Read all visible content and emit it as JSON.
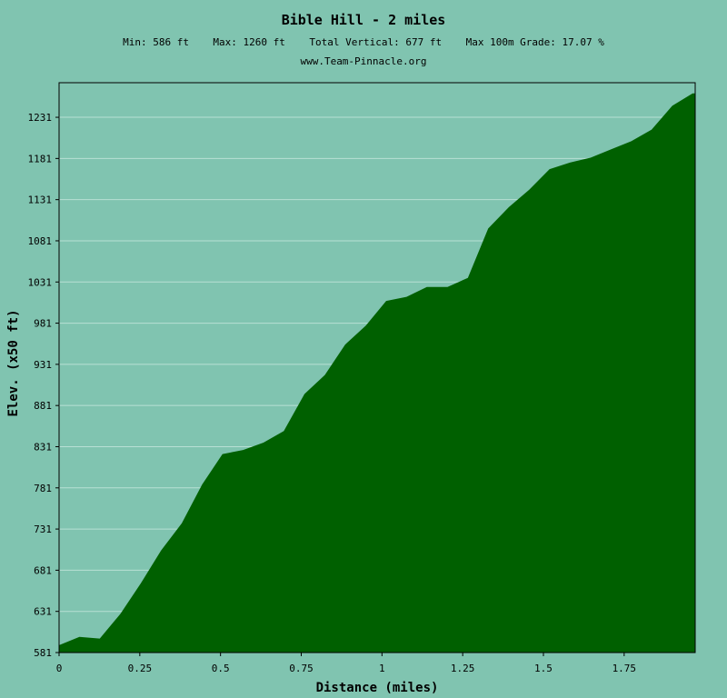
{
  "header": {
    "title": "Bible Hill - 2 miles",
    "stats": "Min: 586 ft    Max: 1260 ft    Total Vertical: 677 ft    Max 100m Grade: 17.07 %",
    "site": "www.Team-Pinnacle.org"
  },
  "colors": {
    "background": "#80c4b0",
    "fill": "#006000",
    "grid": "#b8e0d4"
  },
  "chart_data": {
    "type": "area",
    "title": "Bible Hill - 2 miles",
    "xlabel": "Distance (miles)",
    "ylabel": "Elev. (x50 ft)",
    "xlim": [
      0,
      1.97
    ],
    "ylim": [
      581,
      1273
    ],
    "xticks": [
      "0",
      "0.25",
      "0.5",
      "0.75",
      "1",
      "1.25",
      "1.5",
      "1.75"
    ],
    "xtick_values": [
      0,
      0.25,
      0.5,
      0.75,
      1,
      1.25,
      1.5,
      1.75
    ],
    "yticks": [
      "581",
      "631",
      "681",
      "731",
      "781",
      "831",
      "881",
      "931",
      "981",
      "1031",
      "1081",
      "1131",
      "1181",
      "1231"
    ],
    "ytick_values": [
      581,
      631,
      681,
      731,
      781,
      831,
      881,
      931,
      981,
      1031,
      1081,
      1131,
      1181,
      1231
    ],
    "grid": "horizontal",
    "series": [
      {
        "x": [
          0,
          0.063,
          0.126,
          0.19,
          0.253,
          0.316,
          0.38,
          0.443,
          0.506,
          0.57,
          0.633,
          0.696,
          0.76,
          0.823,
          0.886,
          0.95,
          1.013,
          1.076,
          1.139,
          1.203,
          1.266,
          1.329,
          1.393,
          1.456,
          1.519,
          1.582,
          1.646,
          1.709,
          1.772,
          1.835,
          1.899,
          1.962,
          1.97
        ],
        "y": [
          590,
          600,
          598,
          628,
          665,
          705,
          738,
          785,
          822,
          827,
          836,
          850,
          895,
          918,
          955,
          978,
          1008,
          1013,
          1025,
          1025,
          1036,
          1096,
          1122,
          1143,
          1168,
          1176,
          1182,
          1192,
          1202,
          1216,
          1245,
          1260,
          1260
        ]
      }
    ]
  }
}
